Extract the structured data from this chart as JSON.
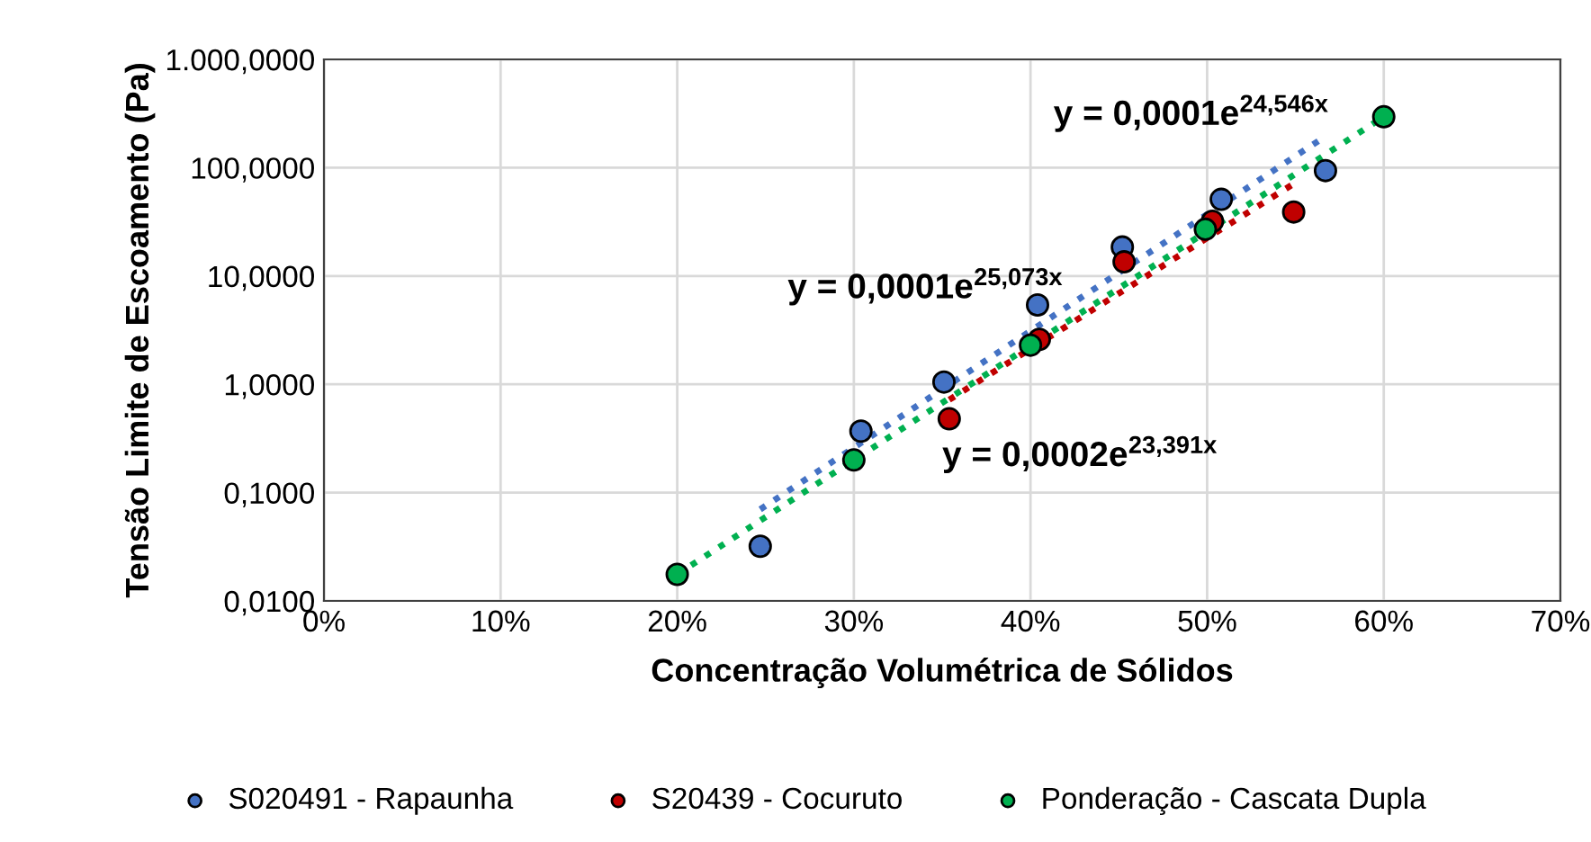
{
  "chart_data": {
    "type": "scatter",
    "xlabel": "Concentração Volumétrica de Sólidos",
    "ylabel": "Tensão Limite de Escoamento (Pa)",
    "log": "y",
    "grid": true,
    "legend": "bottom",
    "marker": "circle",
    "xlim": [
      0,
      70
    ],
    "xticks": [
      {
        "value": 0,
        "label": "0%"
      },
      {
        "value": 10,
        "label": "10%"
      },
      {
        "value": 20,
        "label": "20%"
      },
      {
        "value": 30,
        "label": "30%"
      },
      {
        "value": 40,
        "label": "40%"
      },
      {
        "value": 50,
        "label": "50%"
      },
      {
        "value": 60,
        "label": "60%"
      },
      {
        "value": 70,
        "label": "70%"
      }
    ],
    "ylim": [
      0.01,
      1000
    ],
    "yticks": [
      {
        "value": 0.01,
        "label": "0,0100"
      },
      {
        "value": 0.1,
        "label": "0,1000"
      },
      {
        "value": 1,
        "label": "1,0000"
      },
      {
        "value": 10,
        "label": "10,0000"
      },
      {
        "value": 100,
        "label": "100,0000"
      },
      {
        "value": 1000,
        "label": "1.000,0000"
      }
    ],
    "series": [
      {
        "name": "S020491 - Rapaunha",
        "color": "#4472c4",
        "x": [
          24.7,
          30.4,
          35.1,
          40.4,
          45.2,
          50.8,
          56.7
        ],
        "values": [
          0.032,
          0.37,
          1.05,
          5.4,
          18.5,
          51,
          94
        ]
      },
      {
        "name": "S20439 - Cocuruto",
        "color": "#c00000",
        "x": [
          35.4,
          40.5,
          45.3,
          50.3,
          54.9
        ],
        "values": [
          0.48,
          2.6,
          13.5,
          32,
          39
        ]
      },
      {
        "name": "Ponderação - Cascata Dupla",
        "color": "#00b050",
        "x": [
          20.0,
          30.0,
          40.0,
          49.9,
          60.0
        ],
        "values": [
          0.0176,
          0.2,
          2.3,
          27,
          295
        ]
      },
      {
        "type": "line",
        "line_style": "dotted",
        "marker": "none",
        "color": "#4472c4",
        "x": [
          24.7,
          56.7
        ],
        "values": [
          0.07,
          195
        ]
      },
      {
        "type": "line",
        "line_style": "dotted",
        "marker": "none",
        "color": "#c00000",
        "x": [
          35.4,
          54.9
        ],
        "values": [
          0.72,
          71
        ]
      },
      {
        "type": "line",
        "line_style": "dotted",
        "marker": "none",
        "color": "#00b050",
        "x": [
          20.0,
          60.0
        ],
        "values": [
          0.0176,
          295
        ]
      }
    ],
    "annotations": [
      "y = 0,0001e$^{24,546x}$",
      "y = 0,0001e$^{25,073x}$",
      "y = 0,0002e$^{23,391x}$"
    ]
  }
}
